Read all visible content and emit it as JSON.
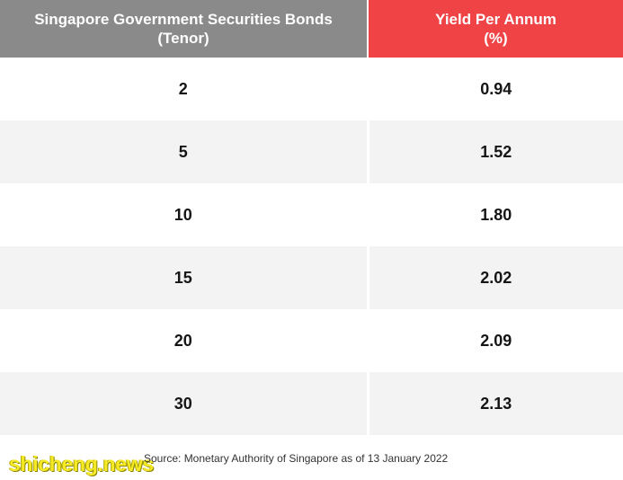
{
  "chart_data": {
    "type": "table",
    "columns": [
      {
        "line1": "Singapore Government Securities Bonds",
        "line2": "(Tenor)"
      },
      {
        "line1": "Yield Per Annum",
        "line2": "(%)"
      }
    ],
    "rows": [
      {
        "tenor": "2",
        "yield": "0.94"
      },
      {
        "tenor": "5",
        "yield": "1.52"
      },
      {
        "tenor": "10",
        "yield": "1.80"
      },
      {
        "tenor": "15",
        "yield": "2.02"
      },
      {
        "tenor": "20",
        "yield": "2.09"
      },
      {
        "tenor": "30",
        "yield": "2.13"
      }
    ],
    "source": "Source: Monetary Authority of Singapore as of 13 January 2022"
  },
  "watermark": "shicheng.news",
  "colors": {
    "header_tenor_bg": "#8a8a8a",
    "header_yield_bg": "#ef4346",
    "stripe_bg": "#f3f3f3",
    "watermark": "#f5ea25"
  }
}
